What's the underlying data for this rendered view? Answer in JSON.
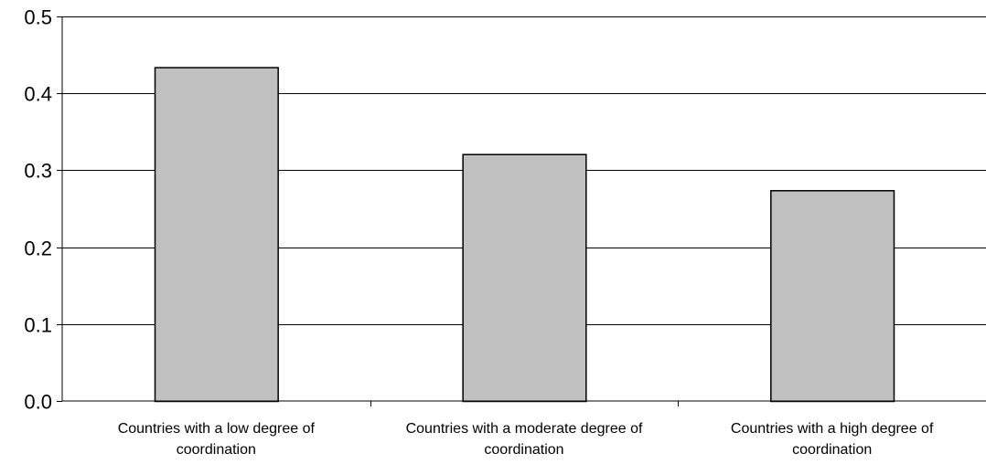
{
  "chart_data": {
    "type": "bar",
    "categories": [
      [
        "Countries with a low degree of",
        "coordination"
      ],
      [
        "Countries with a moderate degree of",
        "coordination"
      ],
      [
        "Countries with a high degree of",
        "coordination"
      ]
    ],
    "values": [
      0.434,
      0.321,
      0.274
    ],
    "ylim": [
      0,
      0.5
    ],
    "yticks": [
      "0.0",
      "0.1",
      "0.2",
      "0.3",
      "0.4",
      "0.5"
    ],
    "grid": true,
    "bar_color": "#c0c0c0",
    "bar_edge_color": "#000000"
  }
}
